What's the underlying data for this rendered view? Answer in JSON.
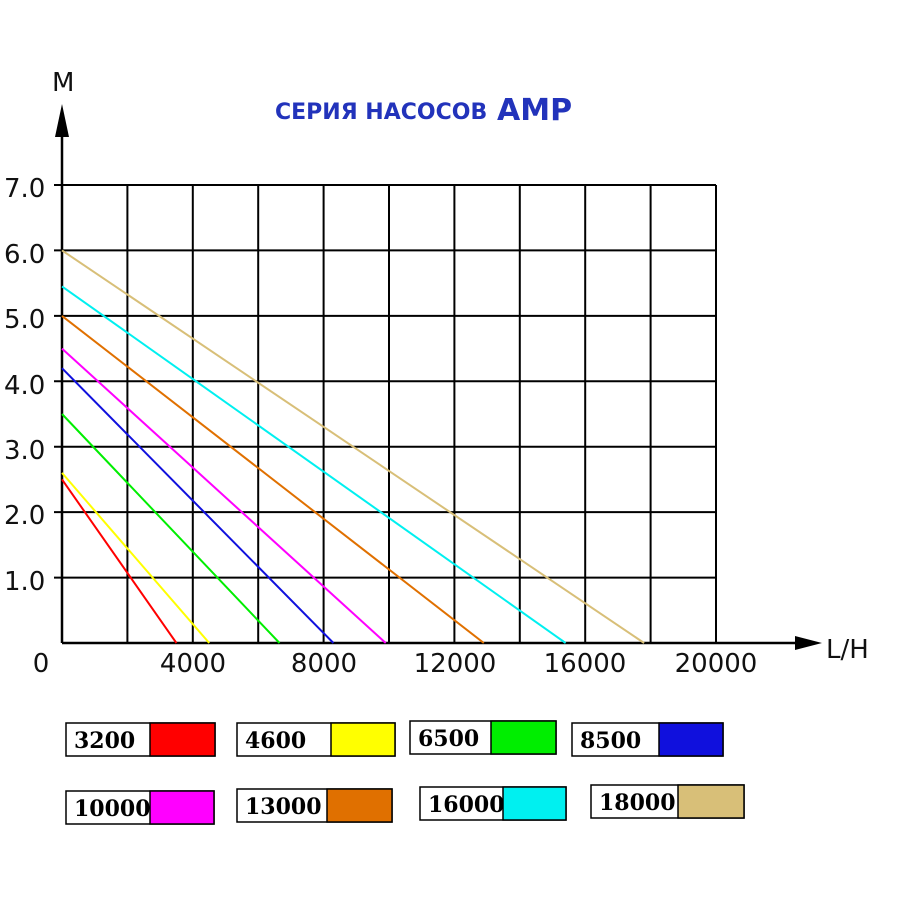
{
  "chart_data": {
    "type": "line",
    "title": "СЕРИЯ НАСОСОВ",
    "title_suffix": "AMP",
    "xlabel": "L/H",
    "ylabel": "M",
    "xlim": [
      0,
      20000
    ],
    "ylim": [
      0,
      7
    ],
    "x_tick_labels": [
      "0",
      "4000",
      "8000",
      "12000",
      "16000",
      "20000"
    ],
    "y_tick_labels": [
      "1.0",
      "2.0",
      "3.0",
      "4.0",
      "5.0",
      "6.0",
      "7.0"
    ],
    "grid": true,
    "legend_position": "bottom",
    "series": [
      {
        "name": "3200",
        "color": "#ff0000",
        "x": [
          0,
          3500
        ],
        "y": [
          2.5,
          0
        ]
      },
      {
        "name": "4600",
        "color": "#ffff00",
        "x": [
          0,
          4500
        ],
        "y": [
          2.6,
          0
        ]
      },
      {
        "name": "6500",
        "color": "#00ee00",
        "x": [
          0,
          6650
        ],
        "y": [
          3.5,
          0
        ]
      },
      {
        "name": "8500",
        "color": "#1010dd",
        "x": [
          0,
          8300
        ],
        "y": [
          4.2,
          0
        ]
      },
      {
        "name": "10000",
        "color": "#ff00ff",
        "x": [
          0,
          9900
        ],
        "y": [
          4.5,
          0
        ]
      },
      {
        "name": "13000",
        "color": "#e07000",
        "x": [
          0,
          12900
        ],
        "y": [
          5.0,
          0
        ]
      },
      {
        "name": "16000",
        "color": "#00f0f0",
        "x": [
          0,
          15400
        ],
        "y": [
          5.45,
          0
        ]
      },
      {
        "name": "18000",
        "color": "#d8bf78",
        "x": [
          0,
          17800
        ],
        "y": [
          6.0,
          0
        ]
      }
    ]
  }
}
